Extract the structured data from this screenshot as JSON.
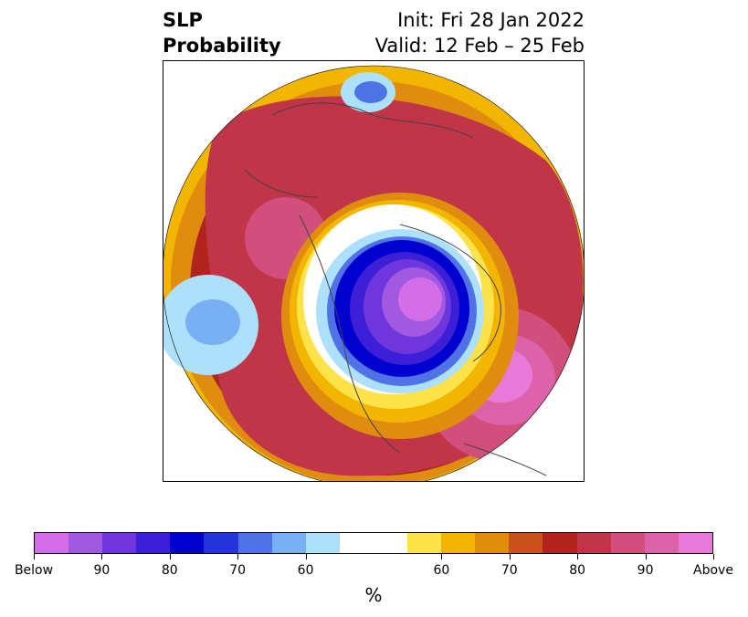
{
  "title": {
    "left_line1": "SLP",
    "left_line2": "Probability",
    "right_line1": "Init: Fri 28 Jan 2022",
    "right_line2": "Valid: 12 Feb – 25 Feb"
  },
  "map": {
    "region": "Northern Hemisphere polar view",
    "features": [
      "below-normal core over Canada",
      "above-normal ring over mid-latitudes",
      "below-normal area over North Pacific",
      "above-normal area over North Atlantic"
    ]
  },
  "colorbar": {
    "unit": "%",
    "colors": [
      "#d36ee8",
      "#a159e1",
      "#6f36dd",
      "#3c1fd6",
      "#0000cf",
      "#2334db",
      "#4f72e6",
      "#78b0f3",
      "#ade0fb",
      "#ffffff",
      "#ffffff",
      "#fde24a",
      "#f2b500",
      "#e08c0e",
      "#c8531a",
      "#b1241e",
      "#c03548",
      "#d04f7c",
      "#dc63a9",
      "#e879d9"
    ],
    "tick_labels": [
      "Below",
      "90",
      "80",
      "70",
      "60",
      "60",
      "70",
      "80",
      "90",
      "Above"
    ]
  }
}
